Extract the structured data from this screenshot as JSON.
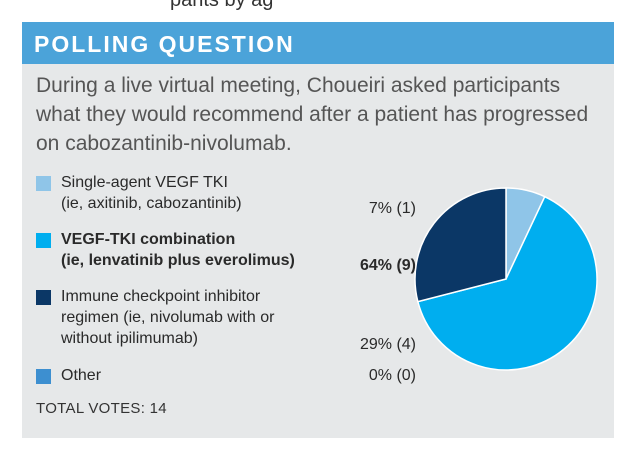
{
  "top_fragment": "pants by ag",
  "header": {
    "title": "POLLING QUESTION"
  },
  "question": "During a live virtual meeting, Choueiri asked participants what they would recommend after a patient has progressed on cabozantinib-nivolumab.",
  "total_votes": "TOTAL VOTES: 14",
  "colors": {
    "header_bg": "#4ba3d9",
    "card_bg": "#e6e8e9"
  },
  "legend": [
    {
      "label": "Single-agent VEGF TKI\n(ie, axitinib, cabozantinib)",
      "value": "7% (1)",
      "color": "#8fc5e8",
      "bold": false
    },
    {
      "label": "VEGF-TKI combination\n(ie, lenvatinib plus everolimus)",
      "value": "64% (9)",
      "color": "#00aeef",
      "bold": true
    },
    {
      "label": "Immune checkpoint inhibitor\nregimen (ie, nivolumab with or\nwithout ipilimumab)",
      "value": "29% (4)",
      "color": "#0b3766",
      "bold": false
    },
    {
      "label": "Other",
      "value": "0% (0)",
      "color": "#3d8fd0",
      "bold": false
    }
  ],
  "chart_data": {
    "type": "pie",
    "title": "POLLING QUESTION",
    "categories": [
      "Single-agent VEGF TKI (ie, axitinib, cabozantinib)",
      "VEGF-TKI combination (ie, lenvatinib plus everolimus)",
      "Immune checkpoint inhibitor regimen (ie, nivolumab with or without ipilimumab)",
      "Other"
    ],
    "values": [
      7,
      64,
      29,
      0
    ],
    "counts": [
      1,
      9,
      4,
      0
    ],
    "colors": [
      "#8fc5e8",
      "#00aeef",
      "#0b3766",
      "#3d8fd0"
    ],
    "legend_placement": "left",
    "total": 14
  }
}
